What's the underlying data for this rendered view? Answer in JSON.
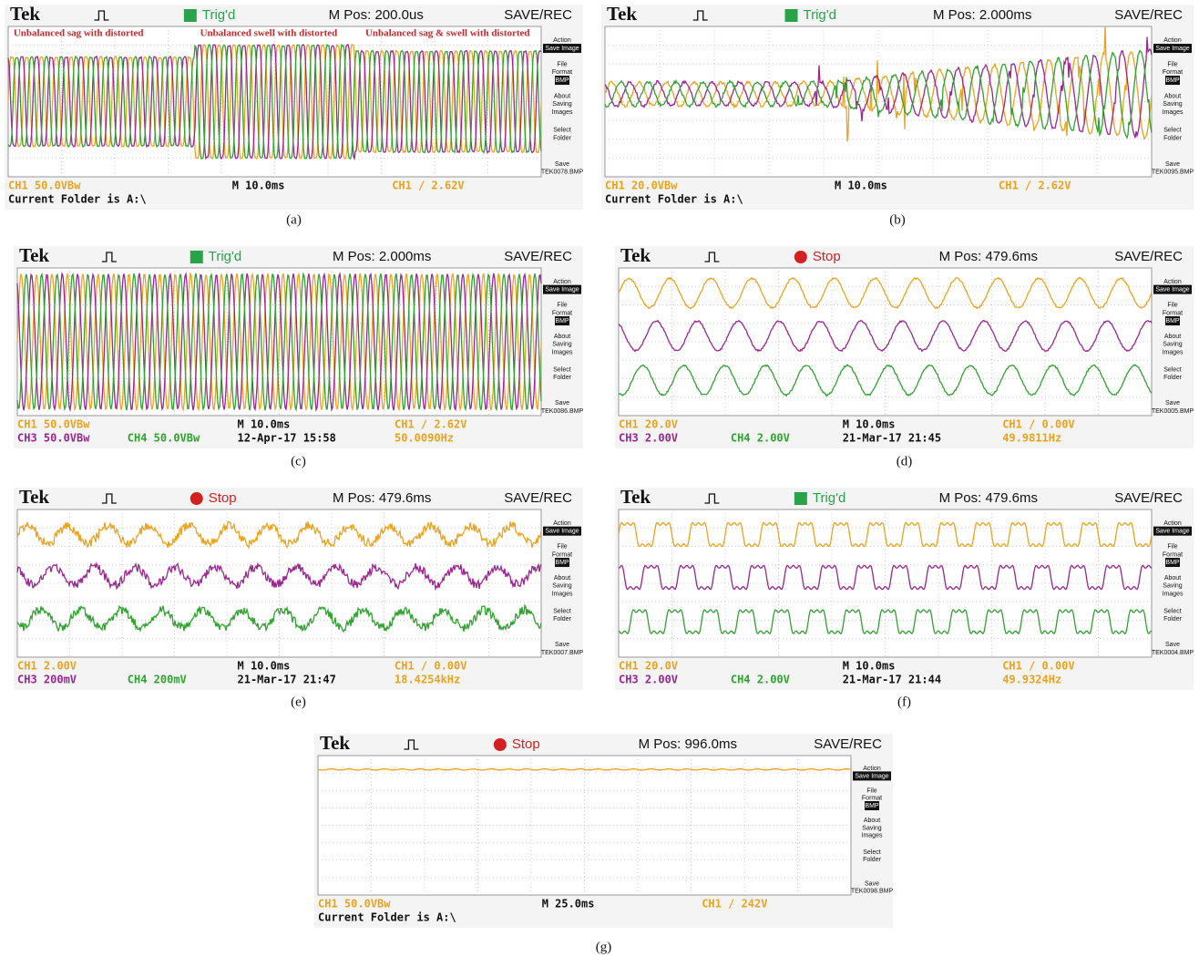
{
  "panels": [
    {
      "label": "(a)",
      "header": {
        "brand": "Tek",
        "trigger": "Trig'd",
        "position": "M Pos: 200.0us",
        "mode": "SAVE/REC"
      },
      "annotations": [
        "Unbalanced sag with distorted",
        "Unbalanced swell with distorted",
        "Unbalanced sag & swell with distorted"
      ],
      "menu": [
        "Action",
        "Save Image",
        "File",
        "Format",
        "BMP",
        "About",
        "Saving",
        "Images",
        "Select",
        "Folder",
        "Save",
        "TEK0078.BMP"
      ],
      "footer": [
        [
          "CH1  50.0VBw",
          "M 10.0ms",
          "CH1 / 2.62V"
        ],
        [
          "Current Folder is A:\\"
        ]
      ]
    },
    {
      "label": "(b)",
      "header": {
        "brand": "Tek",
        "trigger": "Trig'd",
        "position": "M Pos: 2.000ms",
        "mode": "SAVE/REC"
      },
      "menu": [
        "Action",
        "Save Image",
        "File",
        "Format",
        "BMP",
        "About",
        "Saving",
        "Images",
        "Select",
        "Folder",
        "Save",
        "TEK0095.BMP"
      ],
      "footer": [
        [
          "CH1  20.0VBw",
          "M 10.0ms",
          "CH1 / 2.62V"
        ],
        [
          "Current Folder is A:\\"
        ]
      ]
    },
    {
      "label": "(c)",
      "header": {
        "brand": "Tek",
        "trigger": "Trig'd",
        "position": "M Pos: 2.000ms",
        "mode": "SAVE/REC"
      },
      "menu": [
        "Action",
        "Save Image",
        "File",
        "Format",
        "BMP",
        "About",
        "Saving",
        "Images",
        "Select",
        "Folder",
        "Save",
        "TEK0086.BMP"
      ],
      "footer": [
        [
          "CH1  50.0VBw",
          "M 10.0ms",
          "CH1 / 2.62V"
        ],
        [
          "CH3  50.0VBw",
          "CH4  50.0VBw",
          "12-Apr-17 15:58",
          "50.0090Hz"
        ]
      ]
    },
    {
      "label": "(d)",
      "header": {
        "brand": "Tek",
        "trigger": "Stop",
        "position": "M Pos: 479.6ms",
        "mode": "SAVE/REC"
      },
      "menu": [
        "Action",
        "Save Image",
        "File",
        "Format",
        "BMP",
        "About",
        "Saving",
        "Images",
        "Select",
        "Folder",
        "Save",
        "TEK0005.BMP"
      ],
      "footer": [
        [
          "CH1  20.0V",
          "M 10.0ms",
          "CH1 / 0.00V"
        ],
        [
          "CH3  2.00V",
          "CH4  2.00V",
          "21-Mar-17 21:45",
          "49.9811Hz"
        ]
      ]
    },
    {
      "label": "(e)",
      "header": {
        "brand": "Tek",
        "trigger": "Stop",
        "position": "M Pos: 479.6ms",
        "mode": "SAVE/REC"
      },
      "menu": [
        "Action",
        "Save Image",
        "File",
        "Format",
        "BMP",
        "About",
        "Saving",
        "Images",
        "Select",
        "Folder",
        "Save",
        "TEK0007.BMP"
      ],
      "footer": [
        [
          "CH1  2.00V",
          "M 10.0ms",
          "CH1 / 0.00V"
        ],
        [
          "CH3  200mV",
          "CH4  200mV",
          "21-Mar-17 21:47",
          "18.4254kHz"
        ]
      ]
    },
    {
      "label": "(f)",
      "header": {
        "brand": "Tek",
        "trigger": "Trig'd",
        "position": "M Pos: 479.6ms",
        "mode": "SAVE/REC"
      },
      "menu": [
        "Action",
        "Save Image",
        "File",
        "Format",
        "BMP",
        "About",
        "Saving",
        "Images",
        "Select",
        "Folder",
        "Save",
        "TEK0004.BMP"
      ],
      "footer": [
        [
          "CH1  20.0V",
          "M 10.0ms",
          "CH1 / 0.00V"
        ],
        [
          "CH3  2.00V",
          "CH4  2.00V",
          "21-Mar-17 21:44",
          "49.9324Hz"
        ]
      ]
    },
    {
      "label": "(g)",
      "header": {
        "brand": "Tek",
        "trigger": "Stop",
        "position": "M Pos: 996.0ms",
        "mode": "SAVE/REC"
      },
      "menu": [
        "Action",
        "Save Image",
        "File",
        "Format",
        "BMP",
        "About",
        "Saving",
        "Images",
        "Select",
        "Folder",
        "Save",
        "TEK0098.BMP"
      ],
      "footer": [
        [
          "CH1  50.0VBw",
          "M 25.0ms",
          "CH1 / 242V"
        ],
        [
          "Current Folder is A:\\"
        ]
      ]
    }
  ]
}
